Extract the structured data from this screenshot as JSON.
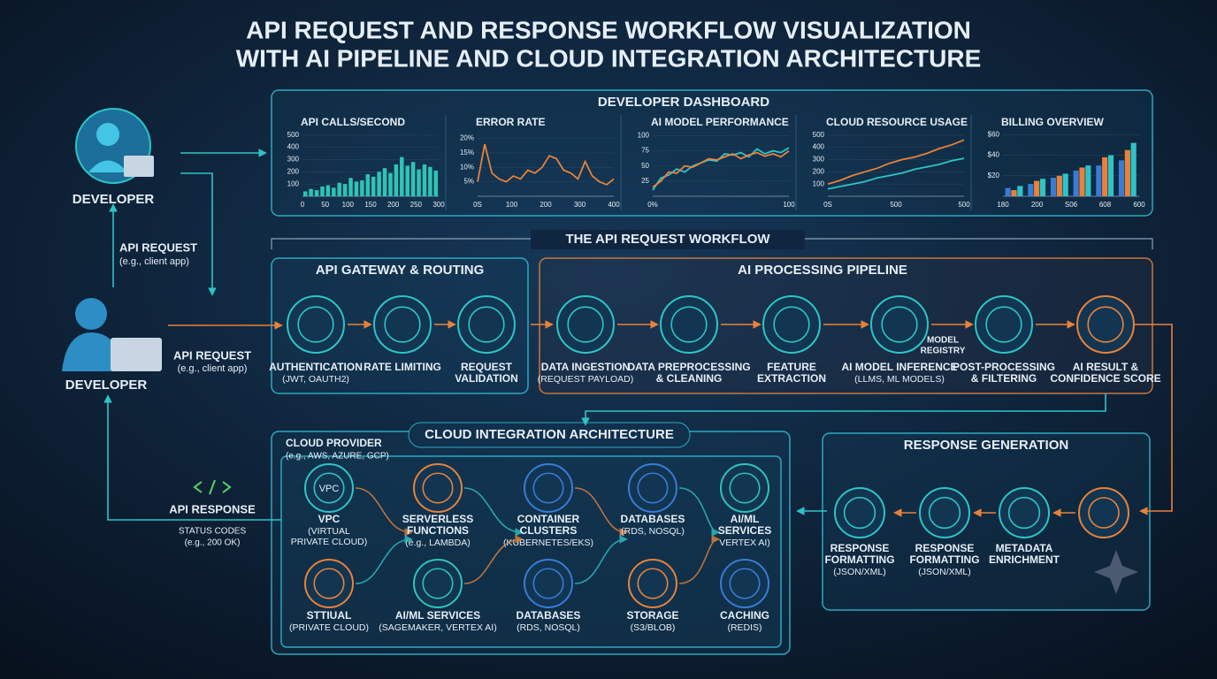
{
  "header": {
    "title_lines": [
      "API REQUEST AND RESPONSE WORKFLOW VISUALIZATION",
      "WITH AI PIPELINE AND CLOUD INTEGRATION ARCHITECTURE"
    ]
  },
  "actors": {
    "developer_top": "DEVELOPER",
    "developer_main": "DEVELOPER",
    "request_left": {
      "title": "API REQUEST",
      "note": "(e.g., client app)"
    },
    "request_main": {
      "title": "API REQUEST",
      "note": "(e.g., client app)"
    },
    "response": {
      "title": "API RESPONSE",
      "lines": [
        "STATUS CODES",
        "(e.g., 200 OK)"
      ]
    }
  },
  "dashboard": {
    "title": "DEVELOPER DASHBOARD",
    "panels": [
      {
        "type": "bar",
        "title": "API CALLS/SECOND",
        "color": "#2ec4b6",
        "ylim": [
          0,
          520
        ],
        "yticks": [
          500,
          400,
          300,
          200,
          100
        ],
        "xlabels": [
          "0",
          "50",
          "100",
          "150",
          "200",
          "250",
          "300"
        ],
        "values": [
          40,
          60,
          50,
          80,
          90,
          70,
          110,
          100,
          150,
          120,
          130,
          180,
          160,
          200,
          230,
          190,
          260,
          320,
          250,
          280,
          220,
          260,
          240,
          210
        ]
      },
      {
        "type": "line",
        "title": "ERROR RATE",
        "ylim": [
          0,
          22
        ],
        "yticks": [
          {
            "value": 20,
            "label": "20%"
          },
          {
            "value": 15,
            "label": "15%"
          },
          {
            "value": 10,
            "label": "10%"
          },
          {
            "value": 5,
            "label": "5%"
          }
        ],
        "xlabels": [
          "0S",
          "100",
          "200",
          "300",
          "400"
        ],
        "series": [
          {
            "color": "#e8823a",
            "values": [
              5,
              18,
              8,
              6,
              5,
              7,
              6,
              9,
              8,
              10,
              14,
              13,
              9,
              8,
              6,
              12,
              7,
              5,
              4,
              6
            ]
          }
        ]
      },
      {
        "type": "line",
        "title": "AI MODEL PERFORMANCE",
        "ylim": [
          0,
          105
        ],
        "yticks": [
          100,
          75,
          50,
          25
        ],
        "xlabels": [
          "0%",
          "100"
        ],
        "series": [
          {
            "color": "#2ec4c7",
            "values": [
              10,
              30,
              35,
              45,
              40,
              50,
              55,
              60,
              58,
              70,
              68,
              72,
              65,
              78,
              70,
              75,
              72,
              80
            ]
          },
          {
            "color": "#e8823a",
            "values": [
              15,
              25,
              40,
              38,
              50,
              48,
              55,
              62,
              60,
              65,
              70,
              62,
              68,
              72,
              66,
              70,
              65,
              75
            ]
          }
        ]
      },
      {
        "type": "line",
        "title": "CLOUD RESOURCE USAGE",
        "ylim": [
          0,
          520
        ],
        "yticks": [
          500,
          400,
          300,
          200,
          100
        ],
        "xlabels": [
          "0S",
          "500",
          "500"
        ],
        "series": [
          {
            "color": "#e8823a",
            "values": [
              100,
              130,
              170,
              200,
              230,
              270,
              300,
              320,
              350,
              390,
              420,
              460
            ]
          },
          {
            "color": "#2ec4c7",
            "values": [
              60,
              80,
              100,
              120,
              150,
              170,
              190,
              220,
              240,
              260,
              290,
              310
            ]
          }
        ]
      },
      {
        "type": "bar",
        "title": "BILLING OVERVIEW",
        "ylim": [
          0,
          62
        ],
        "yticks": [
          {
            "value": 60,
            "label": "$60"
          },
          {
            "value": 40,
            "label": "$40"
          },
          {
            "value": 20,
            "label": "$20"
          }
        ],
        "xlabels": [
          "180",
          "200",
          "S06",
          "608",
          "600"
        ],
        "series": [
          {
            "color": "#3a7bd5",
            "values": [
              8,
              12,
              18,
              25,
              30,
              35
            ]
          },
          {
            "color": "#e8823a",
            "values": [
              6,
              15,
              20,
              28,
              38,
              45
            ]
          },
          {
            "color": "#2ec4c7",
            "values": [
              10,
              17,
              22,
              30,
              40,
              52
            ]
          }
        ]
      }
    ]
  },
  "workflow": {
    "title": "THE API REQUEST WORKFLOW",
    "gateway": {
      "title": "API GATEWAY & ROUTING",
      "steps": [
        {
          "lines": [
            "AUTHENTICATION"
          ],
          "notes": [
            "(JWT, OAUTH2)"
          ]
        },
        {
          "lines": [
            "RATE LIMITING"
          ]
        },
        {
          "lines": [
            "REQUEST",
            "VALIDATION"
          ]
        }
      ]
    },
    "pipeline": {
      "title": "AI PROCESSING PIPELINE",
      "registry": [
        "MODEL",
        "REGISTRY"
      ],
      "steps": [
        {
          "lines": [
            "DATA INGESTION"
          ],
          "notes": [
            "(REQUEST PAYLOAD)"
          ]
        },
        {
          "lines": [
            "DATA PREPROCESSING",
            "& CLEANING"
          ]
        },
        {
          "lines": [
            "FEATURE",
            "EXTRACTION"
          ]
        },
        {
          "lines": [
            "AI MODEL INFERENCE"
          ],
          "notes": [
            "(LLMS, ML MODELS)"
          ]
        },
        {
          "lines": [
            "POST-PROCESSING",
            "& FILTERING"
          ]
        },
        {
          "lines": [
            "AI RESULT &",
            "CONFIDENCE SCORE"
          ]
        }
      ]
    }
  },
  "cloud": {
    "title": "CLOUD INTEGRATION ARCHITECTURE",
    "provider": "CLOUD PROVIDER",
    "provider_note": "(e.g., AWS, AZURE, GCP)",
    "vpc_icon": "VPC",
    "services": [
      {
        "lines": [
          "VPC"
        ],
        "notes": [
          "(VIRTUAL",
          "PRIVATE CLOUD)"
        ],
        "color": "#2ec4c7"
      },
      {
        "lines": [
          "SERVERLESS",
          "FUNCTIONS"
        ],
        "notes": [
          "(e.g., LAMBDA)"
        ],
        "color": "#e8823a"
      },
      {
        "lines": [
          "CONTAINER",
          "CLUSTERS"
        ],
        "notes": [
          "(KUBERNETES/EKS)"
        ],
        "color": "#3a7bd5"
      },
      {
        "lines": [
          "DATABASES"
        ],
        "notes": [
          "(RDS, NOSQL)"
        ],
        "color": "#3a7bd5"
      },
      {
        "lines": [
          "AI/ML",
          "SERVICES"
        ],
        "notes": [
          "VERTEX AI)"
        ],
        "color": "#2ec4b6"
      },
      {
        "lines": [
          "STTIUAL"
        ],
        "notes": [
          "(PRIVATE CLOUD)"
        ],
        "color": "#e8823a"
      },
      {
        "lines": [
          "AI/ML SERVICES"
        ],
        "notes": [
          "(SAGEMAKER, VERTEX AI)"
        ],
        "color": "#2ec4b6"
      },
      {
        "lines": [
          "DATABASES"
        ],
        "notes": [
          "(RDS, NOSQL)"
        ],
        "color": "#3a7bd5"
      },
      {
        "lines": [
          "STORAGE"
        ],
        "notes": [
          "(S3/BLOB)"
        ],
        "color": "#e8823a"
      },
      {
        "lines": [
          "CACHING"
        ],
        "notes": [
          "(REDIS)"
        ],
        "color": "#3a7bd5"
      }
    ]
  },
  "response": {
    "title": "RESPONSE GENERATION",
    "steps": [
      {
        "lines": [
          "RESPONSE",
          "FORMATTING"
        ],
        "notes": [
          "(JSON/XML)"
        ]
      },
      {
        "lines": [
          "RESPONSE",
          "FORMATTING"
        ],
        "notes": [
          "(JSON/XML)"
        ]
      },
      {
        "lines": [
          "METADATA",
          "ENRICHMENT"
        ]
      }
    ]
  }
}
